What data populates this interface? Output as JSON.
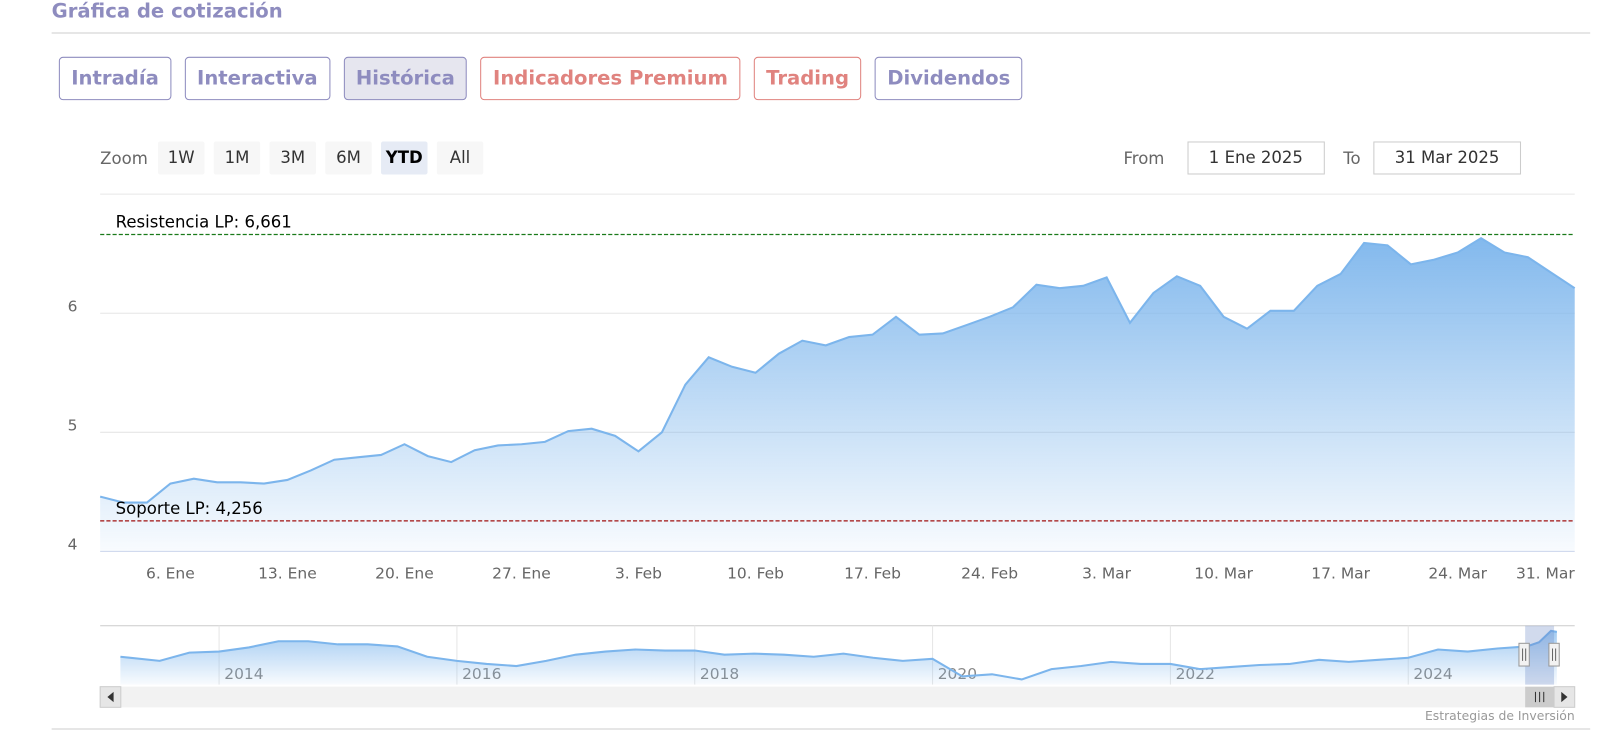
{
  "header": {
    "title": "Gráfica de cotización"
  },
  "tabs": [
    {
      "label": "Intradía",
      "color": "#8e8cbf"
    },
    {
      "label": "Interactiva",
      "color": "#8e8cbf"
    },
    {
      "label": "Histórica",
      "color": "#8e8cbf"
    },
    {
      "label": "Indicadores Premium",
      "color": "#e0837f"
    },
    {
      "label": "Trading",
      "color": "#e0837f"
    },
    {
      "label": "Dividendos",
      "color": "#8e8cbf"
    }
  ],
  "active_tab": 2,
  "range_selector": {
    "zoom_label": "Zoom",
    "buttons": [
      "1W",
      "1M",
      "3M",
      "6M",
      "YTD",
      "All"
    ],
    "selected": 4,
    "from_label": "From",
    "from": "1 Ene 2025",
    "to_label": "To",
    "to": "31 Mar 2025"
  },
  "chart_data": {
    "type": "area",
    "categories": [
      null,
      null,
      null,
      "6. Ene",
      null,
      null,
      null,
      null,
      "13. Ene",
      null,
      null,
      null,
      null,
      "20. Ene",
      null,
      null,
      null,
      null,
      "27. Ene",
      null,
      null,
      null,
      null,
      "3. Feb",
      null,
      null,
      null,
      null,
      "10. Feb",
      null,
      null,
      null,
      null,
      "17. Feb",
      null,
      null,
      null,
      null,
      "24. Feb",
      null,
      null,
      null,
      null,
      "3. Mar",
      null,
      null,
      null,
      null,
      "10. Mar",
      null,
      null,
      null,
      null,
      "17. Mar",
      null,
      null,
      null,
      null,
      "24. Mar",
      null,
      null,
      null,
      null,
      "31. Mar"
    ],
    "values": [
      4.46,
      4.41,
      4.41,
      4.57,
      4.61,
      4.58,
      4.58,
      4.57,
      4.6,
      4.68,
      4.77,
      4.79,
      4.81,
      4.9,
      4.8,
      4.75,
      4.85,
      4.89,
      4.9,
      4.92,
      5.01,
      5.03,
      4.97,
      4.84,
      5.0,
      5.4,
      5.63,
      5.55,
      5.5,
      5.66,
      5.77,
      5.73,
      5.8,
      5.82,
      5.97,
      5.82,
      5.83,
      5.9,
      5.97,
      6.05,
      6.24,
      6.21,
      6.23,
      6.3,
      5.92,
      6.17,
      6.31,
      6.23,
      5.97,
      5.87,
      6.02,
      6.02,
      6.23,
      6.33,
      6.59,
      6.57,
      6.41,
      6.45,
      6.51,
      6.63,
      6.51,
      6.47,
      6.34,
      6.21
    ],
    "color": "#7cb5ec",
    "ylim": [
      4,
      7
    ],
    "yticks": [
      4,
      5,
      6
    ],
    "grid": true,
    "plot_lines": [
      {
        "label": "Resistencia LP: 6,661",
        "value": 6.661,
        "color": "#1a7a1a"
      },
      {
        "label": "Soporte LP: 4,256",
        "value": 4.256,
        "color": "#a01010"
      }
    ]
  },
  "navigator": {
    "type": "area",
    "x": [
      2013.17,
      2013.5,
      2013.75,
      2014.0,
      2014.25,
      2014.5,
      2014.75,
      2015.0,
      2015.25,
      2015.5,
      2015.75,
      2016.0,
      2016.25,
      2016.5,
      2016.75,
      2017.0,
      2017.25,
      2017.5,
      2017.75,
      2018.0,
      2018.25,
      2018.5,
      2018.75,
      2019.0,
      2019.25,
      2019.5,
      2019.75,
      2020.0,
      2020.25,
      2020.5,
      2020.75,
      2021.0,
      2021.25,
      2021.5,
      2021.75,
      2022.0,
      2022.25,
      2022.5,
      2022.75,
      2023.0,
      2023.25,
      2023.5,
      2023.75,
      2024.0,
      2024.25,
      2024.5,
      2024.75,
      2025.0,
      2025.1,
      2025.2,
      2025.25
    ],
    "values": [
      3.46,
      2.94,
      3.97,
      4.1,
      4.61,
      5.38,
      5.38,
      4.99,
      4.99,
      4.74,
      3.46,
      2.94,
      2.56,
      2.3,
      2.94,
      3.71,
      4.1,
      4.35,
      4.23,
      4.23,
      3.71,
      3.84,
      3.71,
      3.46,
      3.84,
      3.33,
      2.94,
      3.2,
      1.02,
      1.28,
      0.64,
      1.92,
      2.3,
      2.82,
      2.56,
      2.56,
      1.92,
      2.18,
      2.43,
      2.56,
      3.07,
      2.82,
      3.07,
      3.33,
      4.35,
      4.1,
      4.48,
      4.74,
      5.25,
      6.66,
      6.53
    ],
    "color": "#7cb5ec",
    "xlim": [
      2013.0,
      2025.4
    ],
    "ylim": [
      0,
      7.3
    ],
    "xticks": [
      2014,
      2016,
      2018,
      2020,
      2022,
      2024
    ]
  },
  "credits": "Estrategias de Inversión"
}
